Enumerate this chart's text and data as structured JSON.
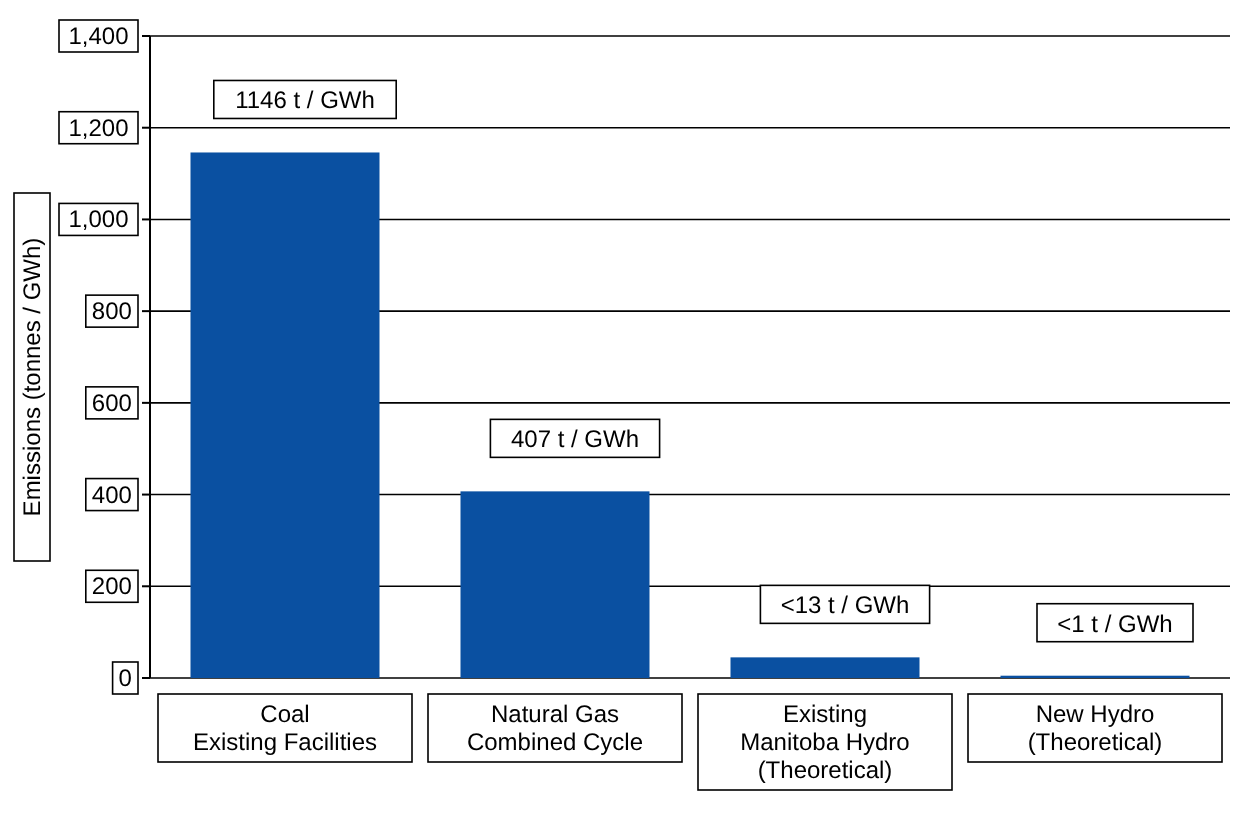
{
  "chart_data": {
    "type": "bar",
    "ylabel": "Emissions  (tonnes / GWh)",
    "categories": [
      "Coal\nExisting Facilities",
      "Natural Gas\nCombined Cycle",
      "Existing\nManitoba Hydro\n(Theoretical)",
      "New Hydro\n(Theoretical)"
    ],
    "values": [
      1146,
      407,
      45,
      5
    ],
    "value_labels": [
      "1146 t / GWh",
      "407 t / GWh",
      "<13 t / GWh",
      "<1 t / GWh"
    ],
    "color": "#0a50a1",
    "ylim": [
      0,
      1400
    ],
    "yticks": [
      0,
      200,
      400,
      600,
      800,
      {
        "value": 1000,
        "label": "1,000"
      },
      {
        "value": 1200,
        "label": "1,200"
      },
      {
        "value": 1400,
        "label": "1,400"
      }
    ],
    "grid": "y"
  }
}
